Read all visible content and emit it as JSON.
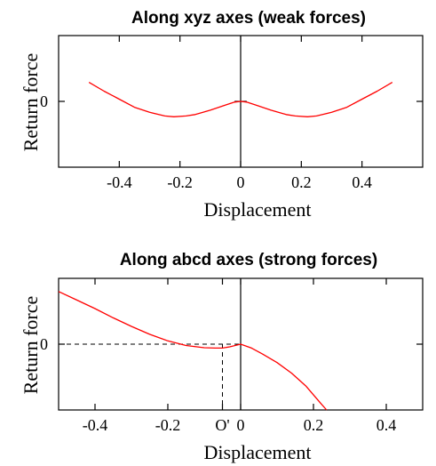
{
  "chart_data": [
    {
      "type": "line",
      "title": "Along xyz axes (weak forces)",
      "xlabel": "Displacement",
      "ylabel": "Return force",
      "xlim": [
        -0.6,
        0.6
      ],
      "ylim": [
        -0.45,
        0.45
      ],
      "xticks": [
        -0.4,
        -0.2,
        0,
        0.2,
        0.4
      ],
      "xtick_labels": [
        "-0.4",
        "-0.2",
        "0",
        "0.2",
        "0.4"
      ],
      "yticks": [
        0
      ],
      "ytick_labels": [
        "0"
      ],
      "grid": false,
      "line_color": "#ff0000",
      "series": [
        {
          "x": [
            -0.5,
            -0.45,
            -0.4,
            -0.35,
            -0.3,
            -0.25,
            -0.22,
            -0.18,
            -0.15,
            -0.1,
            -0.05,
            -0.02,
            0,
            0.02,
            0.05,
            0.1,
            0.15,
            0.18,
            0.22,
            0.25,
            0.3,
            0.35,
            0.4,
            0.45,
            0.5
          ],
          "y": [
            0.13,
            0.07,
            0.015,
            -0.04,
            -0.075,
            -0.1,
            -0.105,
            -0.1,
            -0.09,
            -0.06,
            -0.025,
            -0.005,
            0.0,
            -0.005,
            -0.025,
            -0.06,
            -0.09,
            -0.1,
            -0.105,
            -0.1,
            -0.075,
            -0.04,
            0.015,
            0.07,
            0.13
          ]
        }
      ]
    },
    {
      "type": "line",
      "title": "Along abcd axes (strong forces)",
      "xlabel": "Displacement",
      "ylabel": "Return force",
      "xlim": [
        -0.5,
        0.5
      ],
      "ylim": [
        -0.5,
        0.5
      ],
      "xticks": [
        -0.4,
        -0.2,
        -0.05,
        0,
        0.2,
        0.4
      ],
      "xtick_labels": [
        "-0.4",
        "-0.2",
        "O'",
        "0",
        "0.2",
        "0.4"
      ],
      "yticks": [
        0
      ],
      "ytick_labels": [
        "0"
      ],
      "grid": false,
      "line_color": "#ff0000",
      "reference": {
        "x": -0.05,
        "y": 0
      },
      "series": [
        {
          "x": [
            -0.5,
            -0.45,
            -0.4,
            -0.35,
            -0.3,
            -0.25,
            -0.2,
            -0.15,
            -0.1,
            -0.07,
            -0.05,
            -0.03,
            0,
            0.03,
            0.06,
            0.1,
            0.14,
            0.18,
            0.22,
            0.236
          ],
          "y": [
            0.4,
            0.335,
            0.27,
            0.2,
            0.135,
            0.075,
            0.025,
            -0.01,
            -0.027,
            -0.03,
            -0.03,
            -0.02,
            0.0,
            -0.03,
            -0.075,
            -0.14,
            -0.22,
            -0.32,
            -0.45,
            -0.5
          ]
        }
      ]
    }
  ]
}
